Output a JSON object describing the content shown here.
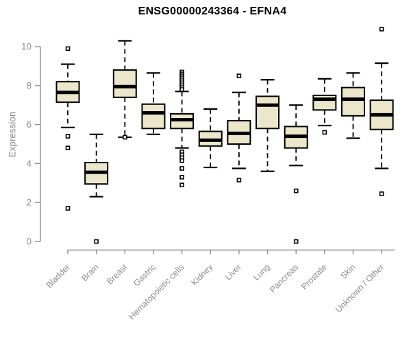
{
  "window": {
    "background": "#ffffff"
  },
  "chart_data": {
    "type": "box",
    "title": "ENSG00000243364 - EFNA4",
    "ylabel": "Expression",
    "xlabel": "",
    "ylim": [
      0,
      10
    ],
    "yticks": [
      0,
      2,
      4,
      6,
      8,
      10
    ],
    "grid": false,
    "legend": "none",
    "box_fill_color": "#ECE7CB",
    "box_stroke_color": "#000000",
    "axis_line_color": "#8f8f8f",
    "axis_text_color": "#8a8d92",
    "title_color": "#000000",
    "categories": [
      "Bladder",
      "Brain",
      "Breast",
      "Gastric",
      "Hematopoietic cells",
      "Kidney",
      "Liver",
      "Lung",
      "Pancreas",
      "Prostate",
      "Skin",
      "Unknown / Other"
    ],
    "series": [
      {
        "name": "Bladder",
        "whisker_low": 5.85,
        "q1": 7.15,
        "median": 7.65,
        "q3": 8.2,
        "whisker_high": 9.1,
        "outliers": [
          9.9,
          5.4,
          4.8,
          1.7
        ]
      },
      {
        "name": "Brain",
        "whisker_low": 2.3,
        "q1": 2.95,
        "median": 3.55,
        "q3": 4.05,
        "whisker_high": 5.5,
        "outliers": [
          0.0
        ]
      },
      {
        "name": "Breast",
        "whisker_low": 5.35,
        "q1": 7.4,
        "median": 7.95,
        "q3": 8.8,
        "whisker_high": 10.3,
        "outliers": [
          5.35
        ]
      },
      {
        "name": "Gastric",
        "whisker_low": 5.5,
        "q1": 5.8,
        "median": 6.6,
        "q3": 7.05,
        "whisker_high": 8.65,
        "outliers": []
      },
      {
        "name": "Hematopoietic cells",
        "whisker_low": 4.8,
        "q1": 5.8,
        "median": 6.25,
        "q3": 6.55,
        "whisker_high": 7.7,
        "outliers": [
          8.7,
          8.6,
          8.5,
          8.4,
          8.3,
          8.2,
          8.1,
          8.0,
          7.9,
          7.8,
          4.6,
          4.45,
          4.3,
          4.15,
          3.75,
          3.3,
          2.9
        ]
      },
      {
        "name": "Kidney",
        "whisker_low": 3.8,
        "q1": 4.9,
        "median": 5.2,
        "q3": 5.65,
        "whisker_high": 6.8,
        "outliers": []
      },
      {
        "name": "Liver",
        "whisker_low": 3.75,
        "q1": 5.0,
        "median": 5.55,
        "q3": 6.2,
        "whisker_high": 7.65,
        "outliers": [
          8.5,
          3.15
        ]
      },
      {
        "name": "Lung",
        "whisker_low": 3.6,
        "q1": 5.8,
        "median": 7.0,
        "q3": 7.45,
        "whisker_high": 8.3,
        "outliers": []
      },
      {
        "name": "Pancreas",
        "whisker_low": 3.9,
        "q1": 4.8,
        "median": 5.4,
        "q3": 5.9,
        "whisker_high": 7.0,
        "outliers": [
          2.6,
          0.0
        ]
      },
      {
        "name": "Prostate",
        "whisker_low": 5.95,
        "q1": 6.75,
        "median": 7.3,
        "q3": 7.5,
        "whisker_high": 8.35,
        "outliers": [
          5.6
        ]
      },
      {
        "name": "Skin",
        "whisker_low": 5.3,
        "q1": 6.45,
        "median": 7.3,
        "q3": 7.9,
        "whisker_high": 8.65,
        "outliers": []
      },
      {
        "name": "Unknown / Other",
        "whisker_low": 3.75,
        "q1": 5.75,
        "median": 6.5,
        "q3": 7.25,
        "whisker_high": 9.15,
        "outliers": [
          10.9,
          2.45
        ]
      }
    ]
  }
}
